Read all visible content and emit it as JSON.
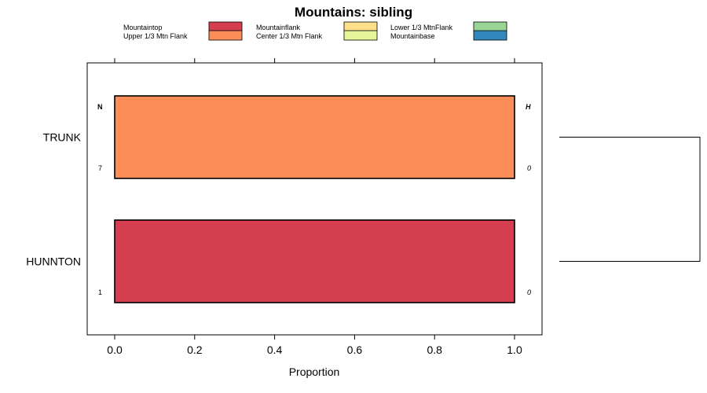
{
  "chart_data": {
    "type": "bar",
    "orientation": "horizontal",
    "stacked": true,
    "title": "Mountains: sibling",
    "xlabel": "Proportion",
    "ylabel": "",
    "xlim": [
      -0.07,
      1.07
    ],
    "x_ticks": [
      0.0,
      0.2,
      0.4,
      0.6,
      0.8,
      1.0
    ],
    "x_tick_labels": [
      "0.0",
      "0.2",
      "0.4",
      "0.6",
      "0.8",
      "1.0"
    ],
    "categories": [
      "TRUNK",
      "HUNNTON"
    ],
    "legend": [
      {
        "label": "Mountaintop",
        "color": "#d53e4f"
      },
      {
        "label": "Upper 1/3 Mtn Flank",
        "color": "#fc8d59"
      },
      {
        "label": "Mountainflank",
        "color": "#fee08b"
      },
      {
        "label": "Center 1/3 Mtn Flank",
        "color": "#e6f598"
      },
      {
        "label": "Lower 1/3 MtnFlank",
        "color": "#99d594"
      },
      {
        "label": "Mountainbase",
        "color": "#3288bd"
      }
    ],
    "series": [
      {
        "name": "Mountaintop",
        "values": [
          0,
          1
        ]
      },
      {
        "name": "Upper 1/3 Mtn Flank",
        "values": [
          1,
          0
        ]
      },
      {
        "name": "Mountainflank",
        "values": [
          0,
          0
        ]
      },
      {
        "name": "Center 1/3 Mtn Flank",
        "values": [
          0,
          0
        ]
      },
      {
        "name": "Lower 1/3 MtnFlank",
        "values": [
          0,
          0
        ]
      },
      {
        "name": "Mountainbase",
        "values": [
          0,
          0
        ]
      }
    ],
    "left_annotation": {
      "header": "N",
      "values": [
        "7",
        "1"
      ]
    },
    "right_annotation": {
      "header": "H",
      "values": [
        "0",
        "0"
      ]
    },
    "dendrogram": {
      "leaves": [
        "TRUNK",
        "HUNNTON"
      ],
      "merge": [
        [
          0,
          1
        ]
      ]
    }
  }
}
